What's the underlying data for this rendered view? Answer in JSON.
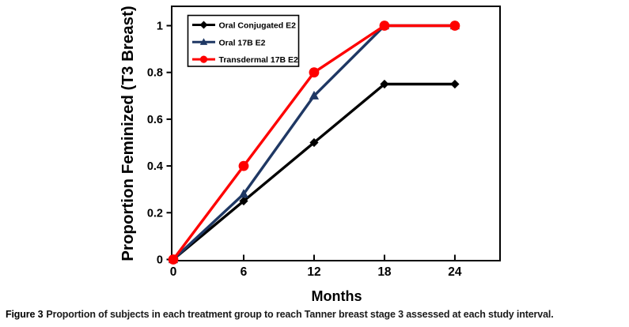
{
  "figure": {
    "caption_label": "Figure 3",
    "caption_text": "Proportion of subjects in each treatment group to reach Tanner breast stage 3 assessed at each study interval."
  },
  "chart_data": {
    "type": "line",
    "title": "",
    "xlabel": "Months",
    "ylabel": "Proportion Feminized (T3 Breast)",
    "x": [
      0,
      6,
      12,
      18,
      24
    ],
    "x_ticks": [
      0,
      6,
      12,
      18,
      24
    ],
    "y_ticks": [
      0,
      0.2,
      0.4,
      0.6,
      0.8,
      1
    ],
    "xlim": [
      0,
      28
    ],
    "ylim": [
      0,
      1.08
    ],
    "grid": false,
    "legend_position": "top-left-inside",
    "legend_border": true,
    "series": [
      {
        "name": "Oral Conjugated E2",
        "color": "#000000",
        "marker": "diamond",
        "values": [
          0,
          0.25,
          0.5,
          0.75,
          0.75
        ]
      },
      {
        "name": "Oral 17B E2",
        "color": "#1F3864",
        "marker": "triangle",
        "values": [
          0,
          0.28,
          0.7,
          1.0,
          1.0
        ]
      },
      {
        "name": "Transdermal 17B E2",
        "color": "#FE0000",
        "marker": "circle",
        "values": [
          0,
          0.4,
          0.8,
          1.0,
          1.0
        ]
      }
    ],
    "colors": {
      "axis": "#000000",
      "plot_background": "#FFFFFF",
      "legend_background": "#FFFFFF"
    }
  }
}
